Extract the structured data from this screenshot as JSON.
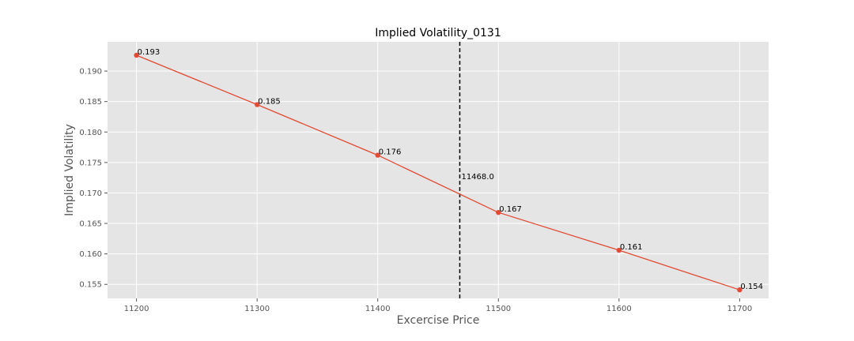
{
  "chart_data": {
    "type": "line",
    "title": "Implied Volatility_0131",
    "xlabel": "Excercise Price",
    "ylabel": "Implied Volatility",
    "x": [
      11200,
      11300,
      11400,
      11500,
      11600,
      11700
    ],
    "series": [
      {
        "values": [
          0.1926,
          0.1845,
          0.1762,
          0.1668,
          0.1606,
          0.1541
        ],
        "labels": [
          "0.193",
          "0.185",
          "0.176",
          "0.167",
          "0.161",
          "0.154"
        ]
      }
    ],
    "xlim": [
      11176,
      11724
    ],
    "ylim": [
      0.1527,
      0.1948
    ],
    "xticks": [
      11200,
      11300,
      11400,
      11500,
      11600,
      11700
    ],
    "yticks": [
      0.155,
      0.16,
      0.165,
      0.17,
      0.175,
      0.18,
      0.185,
      0.19
    ],
    "ytick_labels": [
      "0.155",
      "0.160",
      "0.165",
      "0.170",
      "0.175",
      "0.180",
      "0.185",
      "0.190"
    ],
    "vline": {
      "x": 11468.0,
      "label": "11468.0",
      "label_y": 0.1728,
      "style": "dashed",
      "color": "#000000"
    },
    "grid": true,
    "colors": {
      "line": "#E24A33",
      "background": "#E5E5E5",
      "grid": "#FFFFFF"
    }
  }
}
